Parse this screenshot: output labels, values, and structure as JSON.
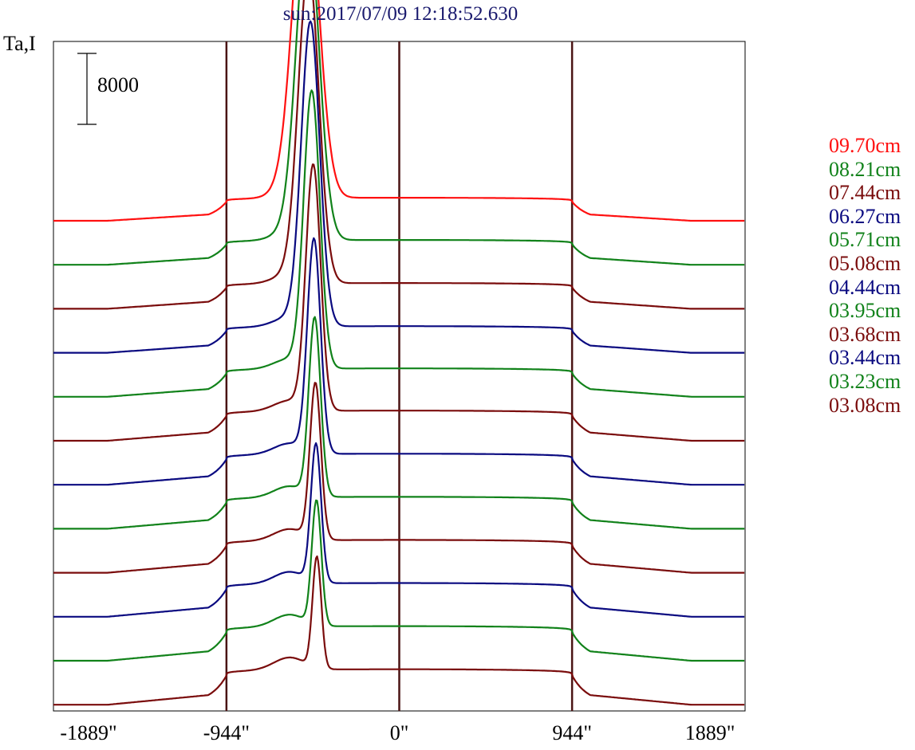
{
  "title": "sun:2017/07/09 12:18:52.630",
  "ylabel": "Ta,I",
  "scale_bar_label": "8000",
  "colors": {
    "red": "#ff1010",
    "green": "#11821a",
    "maroon": "#7a0c0c",
    "blue": "#0a0a80",
    "grid": "#4a1414",
    "frame": "#000000"
  },
  "chart_data": {
    "type": "line",
    "title": "sun:2017/07/09 12:18:52.630",
    "ylabel": "Ta,I",
    "xlabel": "",
    "xlim": [
      -1889,
      1889
    ],
    "x_ticks": [
      -1889,
      -944,
      0,
      944,
      1889
    ],
    "x_tick_labels": [
      "-1889\"",
      "-944\"",
      "0\"",
      "944\"",
      "1889\""
    ],
    "vertical_lines_at": [
      -944,
      0,
      944
    ],
    "scale_bar": 8000,
    "legend_position": "right",
    "series": [
      {
        "name": "09.70cm",
        "color": "#ff1010",
        "offset": 0,
        "disk": 2600,
        "peak_x": -510,
        "peak": 36000,
        "width": 70
      },
      {
        "name": "08.21cm",
        "color": "#11821a",
        "offset": 1,
        "disk": 2800,
        "peak_x": -500,
        "peak": 35500,
        "width": 62
      },
      {
        "name": "07.44cm",
        "color": "#7a0c0c",
        "offset": 2,
        "disk": 2900,
        "peak_x": -495,
        "peak": 35000,
        "width": 56
      },
      {
        "name": "06.27cm",
        "color": "#0a0a80",
        "offset": 3,
        "disk": 3000,
        "peak_x": -485,
        "peak": 34000,
        "width": 50
      },
      {
        "name": "05.71cm",
        "color": "#11821a",
        "offset": 4,
        "disk": 3200,
        "peak_x": -478,
        "peak": 31000,
        "width": 44
      },
      {
        "name": "05.08cm",
        "color": "#7a0c0c",
        "offset": 5,
        "disk": 3400,
        "peak_x": -470,
        "peak": 27500,
        "width": 40
      },
      {
        "name": "04.44cm",
        "color": "#0a0a80",
        "offset": 6,
        "disk": 3500,
        "peak_x": -466,
        "peak": 24000,
        "width": 36
      },
      {
        "name": "03.95cm",
        "color": "#11821a",
        "offset": 7,
        "disk": 3600,
        "peak_x": -462,
        "peak": 20000,
        "width": 32
      },
      {
        "name": "03.68cm",
        "color": "#7a0c0c",
        "offset": 8,
        "disk": 3700,
        "peak_x": -458,
        "peak": 17500,
        "width": 30
      },
      {
        "name": "03.44cm",
        "color": "#0a0a80",
        "offset": 9,
        "disk": 3800,
        "peak_x": -455,
        "peak": 15500,
        "width": 28
      },
      {
        "name": "03.23cm",
        "color": "#11821a",
        "offset": 10,
        "disk": 3900,
        "peak_x": -452,
        "peak": 14000,
        "width": 26
      },
      {
        "name": "03.08cm",
        "color": "#7a0c0c",
        "offset": 11,
        "disk": 4000,
        "peak_x": -450,
        "peak": 12500,
        "width": 24
      }
    ]
  }
}
